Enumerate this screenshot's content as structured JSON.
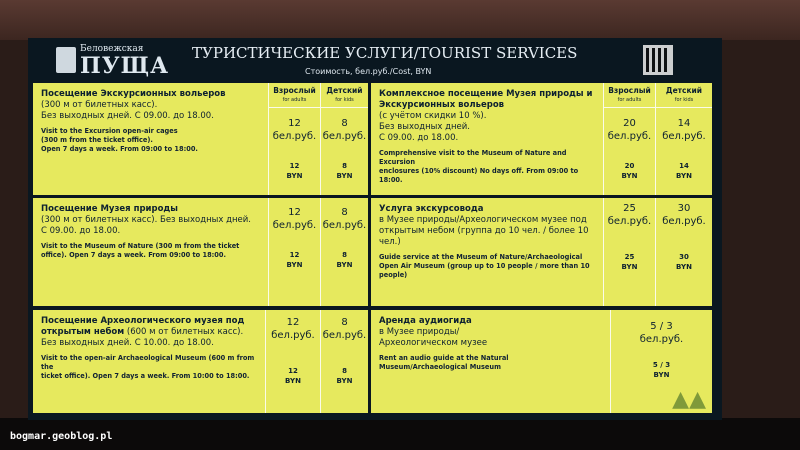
{
  "header": {
    "logo_small": "Беловежская",
    "logo_big": "ПУЩА",
    "title": "ТУРИСТИЧЕСКИЕ УСЛУГИ/TOURIST SERVICES",
    "subtitle": "Стоимость, бел.руб./Cost, BYN"
  },
  "columns": {
    "adult": "Взрослый",
    "adult_en": "for adults",
    "kids": "Детский",
    "kids_en": "for kids"
  },
  "services": [
    {
      "title": "Посещение Экскурсионных вольеров",
      "lines": [
        "(300 м от билетных касс).",
        "Без выходных дней. С 09.00. до 18.00."
      ],
      "en": [
        "Visit to the Excursion open-air cages",
        "(300 m from the ticket office).",
        "Open 7 days a week. From 09:00 to 18:00."
      ],
      "adult": "12",
      "kids": "8",
      "unit": "бел.руб.",
      "currency": "BYN"
    },
    {
      "title": "Комплексное посещение Музея природы и Экскурсионных вольеров",
      "lines": [
        "(с учётом скидки 10 %).",
        "Без выходных дней.",
        "С 09.00. до 18.00."
      ],
      "en": [
        "Comprehensive visit to the Museum of Nature and Excursion",
        "enclosures (10% discount) No days off. From 09:00 to 18:00."
      ],
      "adult": "20",
      "kids": "14",
      "unit": "бел.руб.",
      "currency": "BYN"
    },
    {
      "title": "Посещение Музея природы",
      "lines": [
        "(300 м от билетных касс). Без выходных дней.",
        "С 09.00. до 18.00."
      ],
      "en": [
        "Visit to the Museum of Nature (300 m from the ticket",
        "office). Open 7 days a week. From 09:00 to 18:00."
      ],
      "adult": "12",
      "kids": "8",
      "unit": "бел.руб.",
      "currency": "BYN"
    },
    {
      "title": "Услуга экскурсовода",
      "lines": [
        "в Музее природы/Археологическом музее под",
        "открытым небом (группа до 10 чел. / более 10 чел.)"
      ],
      "en": [
        "Guide service at the Museum of Nature/Archaeological",
        "Open Air Museum (group up to 10 people / more than 10",
        "people)"
      ],
      "adult": "25",
      "kids": "30",
      "unit": "бел.руб.",
      "currency": "BYN"
    },
    {
      "title": "Посещение Археологического музея под открытым небом",
      "title_rest": "(600 м от билетных касс).",
      "lines": [
        "Без выходных дней. С 10.00. до 18.00."
      ],
      "en": [
        "Visit to the open-air Archaeological Museum (600 m from the",
        "ticket office). Open 7 days a week. From 10:00 to 18:00."
      ],
      "adult": "12",
      "kids": "8",
      "unit": "бел.руб.",
      "currency": "BYN"
    },
    {
      "title": "Аренда аудиогида",
      "lines": [
        "в Музее природы/",
        "Археологическом музее"
      ],
      "en": [
        "Rent an audio guide at the Natural",
        "Museum/Archaeological Museum"
      ],
      "price": "5 / 3",
      "unit": "бел.руб.",
      "currency": "BYN"
    }
  ],
  "watermark": "bogmar.geoblog.pl",
  "colors": {
    "panel": "#e6e95e",
    "screen": "#0a1720",
    "text": "#0d2030"
  }
}
